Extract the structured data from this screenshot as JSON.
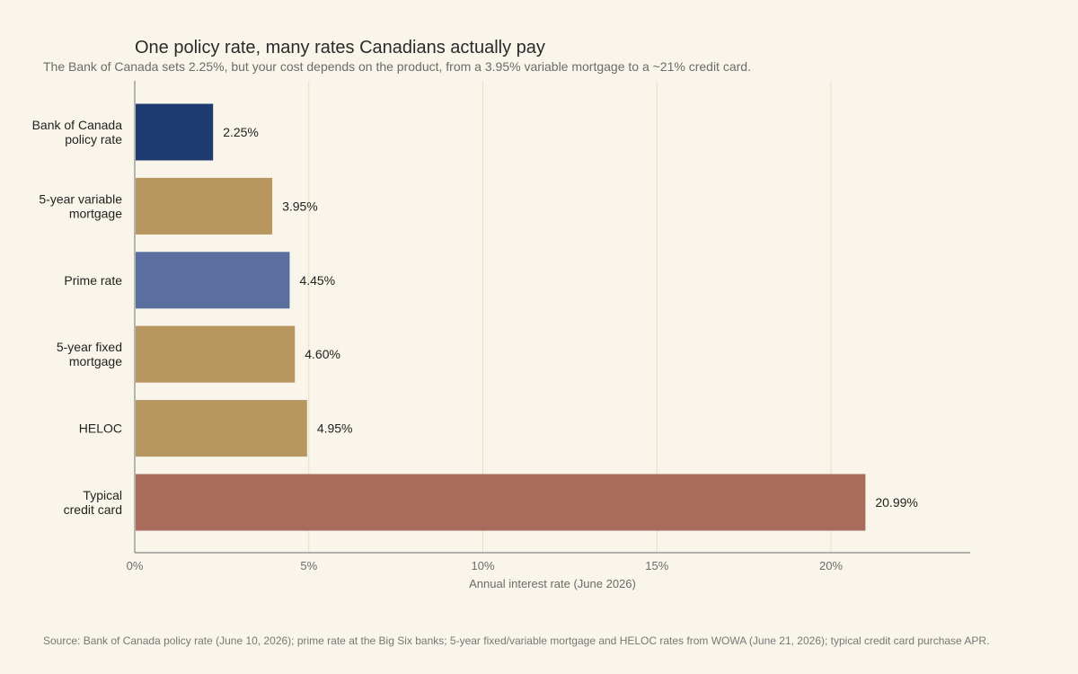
{
  "chart_data": {
    "type": "bar",
    "orientation": "horizontal",
    "title": "One policy rate, many rates Canadians actually pay",
    "subtitle": "The Bank of Canada sets 2.25%, but your cost depends on the product, from a 3.95% variable mortgage to a ~21% credit card.",
    "xlabel": "Annual interest rate (June 2026)",
    "ylabel": "",
    "xlim": [
      0,
      24
    ],
    "xticks": [
      0,
      5,
      10,
      15,
      20
    ],
    "xtick_labels": [
      "0%",
      "5%",
      "10%",
      "15%",
      "20%"
    ],
    "grid": "vertical",
    "categories": [
      [
        "Bank of Canada",
        "policy rate"
      ],
      [
        "5-year variable",
        "mortgage"
      ],
      [
        "Prime rate"
      ],
      [
        "5-year fixed",
        "mortgage"
      ],
      [
        "HELOC"
      ],
      [
        "Typical",
        "credit card"
      ]
    ],
    "values": [
      2.25,
      3.95,
      4.45,
      4.6,
      4.95,
      20.99
    ],
    "value_labels": [
      "2.25%",
      "3.95%",
      "4.45%",
      "4.60%",
      "4.95%",
      "20.99%"
    ],
    "colors": [
      "#1f3a6e",
      "#b8965f",
      "#5a6fa0",
      "#b8965f",
      "#b8965f",
      "#a86b5c"
    ],
    "source": "Source: Bank of Canada policy rate (June 10, 2026); prime rate at the Big Six banks; 5-year fixed/variable mortgage and HELOC rates from WOWA (June 21, 2026); typical credit card purchase APR."
  },
  "theme": {
    "background": "#f9f5ea",
    "gridline_color": "#e8e0c4",
    "axis_color": "#888888"
  }
}
